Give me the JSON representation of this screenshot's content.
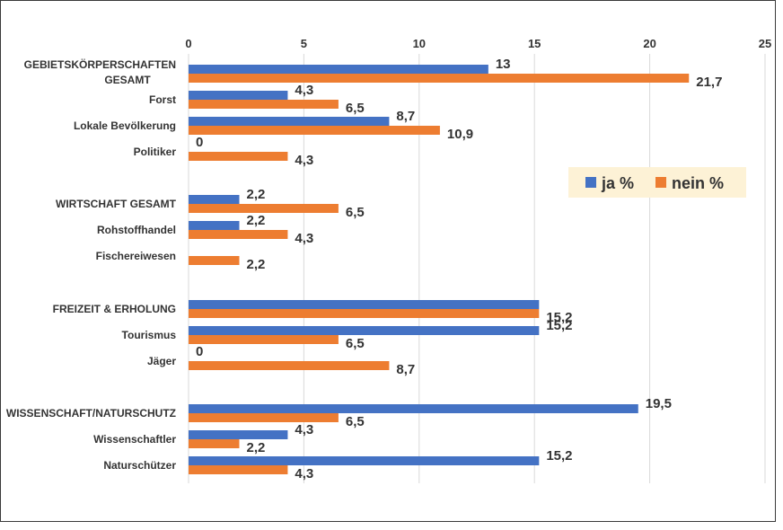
{
  "chart_data": {
    "type": "bar",
    "orientation": "horizontal",
    "axis_position": "top",
    "xlim": [
      0,
      25
    ],
    "ticks": [
      "0",
      "5",
      "10",
      "15",
      "20",
      "25"
    ],
    "grid": true,
    "legend_placement": "right",
    "categories": [
      "GEBIETSKÖRPERSCHAFTEN GESAMT",
      "Forst",
      "Lokale Bevölkerung",
      "Politiker",
      "WIRTSCHAFT GESAMT",
      "Rohstoffhandel",
      "Fischereiwesen",
      "FREIZEIT & ERHOLUNG",
      "Tourismus",
      "Jäger",
      "WISSENSCHAFT/NATURSCHUTZ",
      "Wissenschaftler",
      "Naturschützer"
    ],
    "series": [
      {
        "name": "ja %",
        "color": "#4472C4",
        "values": [
          13,
          4.3,
          8.7,
          0,
          2.2,
          2.2,
          null,
          15.2,
          15.2,
          0,
          19.5,
          4.3,
          15.2
        ],
        "labels": [
          "13",
          "4,3",
          "8,7",
          "0",
          "2,2",
          "2,2",
          "",
          "",
          "15,2",
          "0",
          "19,5",
          "4,3",
          "15,2"
        ]
      },
      {
        "name": "nein %",
        "color": "#ED7D31",
        "values": [
          21.7,
          6.5,
          10.9,
          4.3,
          6.5,
          4.3,
          2.2,
          15.2,
          6.5,
          8.7,
          6.5,
          2.2,
          4.3
        ],
        "labels": [
          "21,7",
          "6,5",
          "10,9",
          "4,3",
          "6,5",
          "4,3",
          "2,2",
          "15,2",
          "6,5",
          "8,7",
          "6,5",
          "2,2",
          "4,3"
        ]
      }
    ]
  }
}
